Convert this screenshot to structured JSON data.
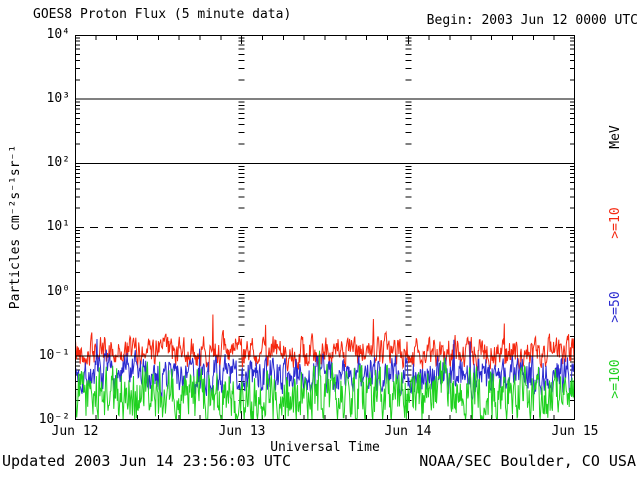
{
  "header": {
    "title": "GOES8 Proton Flux (5 minute data)",
    "begin": "Begin: 2003 Jun 12 0000 UTC"
  },
  "footer": {
    "updated": "Updated 2003 Jun 14 23:56:03 UTC",
    "source": "NOAA/SEC Boulder, CO USA"
  },
  "chart_data": {
    "type": "line",
    "title": "GOES8 Proton Flux (5 minute data)",
    "xlabel": "Universal Time",
    "ylabel": "Particles cm⁻²s⁻¹sr⁻¹",
    "y_scale": "log",
    "ylim": [
      0.01,
      10000
    ],
    "y_tick_labels": [
      "10⁴",
      "10³",
      "10²",
      "10¹",
      "10⁰",
      "10⁻¹",
      "10⁻²"
    ],
    "y_tick_exponents": [
      4,
      3,
      2,
      1,
      0,
      -1,
      -2
    ],
    "x_tick_labels": [
      "Jun 12",
      "Jun 13",
      "Jun 14",
      "Jun 15"
    ],
    "x_days": 3,
    "x_minor_tick_hours": 3,
    "begin_time": "2003 Jun 12 0000 UTC",
    "cadence_minutes": 5,
    "points_per_series": 864,
    "grid": {
      "hlines_solid_exponents_under_data": [
        3,
        2,
        0
      ],
      "hline_solid_exponent_over_data": -1,
      "hlines_dashed_exponents": [
        1
      ],
      "day_gridline_days": [
        1,
        2
      ]
    },
    "legend_title": "MeV",
    "legend_position": "right",
    "series": [
      {
        "name": ">=10",
        "color": "#f5270f",
        "typical_flux": 0.12,
        "observed_min": 0.04,
        "observed_max": 0.7,
        "base_log": -0.94,
        "ar": 0.5,
        "step": 0.2,
        "spike_prob": 0.012,
        "spike_amp": 0.7,
        "min_log": -1.45,
        "max_log": -0.14,
        "seed": 42
      },
      {
        "name": ">=50",
        "color": "#2a2ad0",
        "typical_flux": 0.05,
        "observed_min": 0.013,
        "observed_max": 0.19,
        "base_log": -1.3,
        "ar": 0.5,
        "step": 0.24,
        "spike_prob": 0.006,
        "spike_amp": 0.5,
        "min_log": -1.9,
        "max_log": -0.72,
        "seed": 7
      },
      {
        "name": ">=100",
        "color": "#1fd11f",
        "typical_flux": 0.025,
        "observed_min": 0.01,
        "observed_max": 0.14,
        "base_log": -1.6,
        "ar": 0.45,
        "step": 0.36,
        "spike_prob": 0.01,
        "spike_amp": 0.45,
        "min_log": -2.0,
        "max_log": -0.85,
        "seed": 1234
      }
    ]
  }
}
